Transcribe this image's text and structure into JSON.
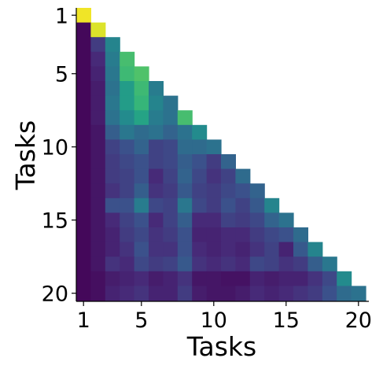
{
  "chart_data": {
    "type": "heatmap",
    "title": "",
    "xlabel": "Tasks",
    "ylabel": "Tasks",
    "x_ticks": [
      1,
      5,
      10,
      15,
      20
    ],
    "y_ticks": [
      1,
      5,
      10,
      15,
      20
    ],
    "n": 20,
    "colormap": "viridis",
    "value_range": [
      0,
      1
    ],
    "triangle": "lower",
    "grid": false,
    "matrix": [
      [
        0.98
      ],
      [
        0.02,
        0.95
      ],
      [
        0.02,
        0.18,
        0.45
      ],
      [
        0.02,
        0.12,
        0.42,
        0.7
      ],
      [
        0.02,
        0.1,
        0.4,
        0.68,
        0.72
      ],
      [
        0.02,
        0.08,
        0.38,
        0.55,
        0.68,
        0.42
      ],
      [
        0.02,
        0.08,
        0.4,
        0.55,
        0.66,
        0.45,
        0.38
      ],
      [
        0.02,
        0.08,
        0.38,
        0.48,
        0.58,
        0.42,
        0.38,
        0.7
      ],
      [
        0.02,
        0.06,
        0.3,
        0.4,
        0.35,
        0.38,
        0.32,
        0.38,
        0.48
      ],
      [
        0.02,
        0.06,
        0.2,
        0.25,
        0.32,
        0.2,
        0.22,
        0.35,
        0.35,
        0.38
      ],
      [
        0.02,
        0.06,
        0.18,
        0.22,
        0.25,
        0.2,
        0.22,
        0.3,
        0.25,
        0.18,
        0.32
      ],
      [
        0.02,
        0.06,
        0.18,
        0.2,
        0.25,
        0.12,
        0.2,
        0.32,
        0.22,
        0.15,
        0.2,
        0.35
      ],
      [
        0.02,
        0.06,
        0.15,
        0.2,
        0.3,
        0.15,
        0.18,
        0.28,
        0.2,
        0.18,
        0.22,
        0.25,
        0.32
      ],
      [
        0.02,
        0.06,
        0.25,
        0.25,
        0.42,
        0.22,
        0.2,
        0.4,
        0.22,
        0.18,
        0.25,
        0.2,
        0.28,
        0.45
      ],
      [
        0.02,
        0.06,
        0.12,
        0.2,
        0.25,
        0.12,
        0.2,
        0.3,
        0.12,
        0.12,
        0.2,
        0.18,
        0.22,
        0.32,
        0.38
      ],
      [
        0.02,
        0.06,
        0.1,
        0.18,
        0.22,
        0.15,
        0.18,
        0.25,
        0.1,
        0.1,
        0.12,
        0.12,
        0.18,
        0.22,
        0.25,
        0.35
      ],
      [
        0.02,
        0.06,
        0.1,
        0.15,
        0.25,
        0.15,
        0.15,
        0.25,
        0.12,
        0.1,
        0.12,
        0.1,
        0.15,
        0.2,
        0.1,
        0.28,
        0.45
      ],
      [
        0.02,
        0.06,
        0.15,
        0.12,
        0.22,
        0.18,
        0.2,
        0.28,
        0.15,
        0.12,
        0.15,
        0.12,
        0.22,
        0.2,
        0.15,
        0.18,
        0.3,
        0.4
      ],
      [
        0.02,
        0.04,
        0.08,
        0.1,
        0.12,
        0.08,
        0.1,
        0.15,
        0.06,
        0.06,
        0.05,
        0.05,
        0.1,
        0.08,
        0.1,
        0.1,
        0.15,
        0.22,
        0.48
      ],
      [
        0.02,
        0.04,
        0.1,
        0.12,
        0.15,
        0.1,
        0.1,
        0.18,
        0.08,
        0.06,
        0.06,
        0.08,
        0.12,
        0.1,
        0.12,
        0.15,
        0.18,
        0.25,
        0.35,
        0.38
      ]
    ]
  }
}
